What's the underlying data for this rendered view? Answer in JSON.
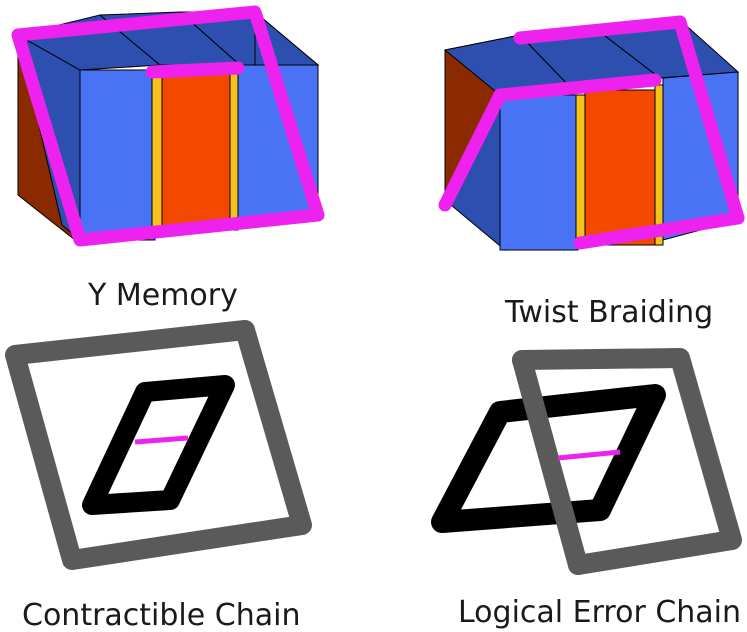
{
  "panels": {
    "y_memory": {
      "label": "Y Memory"
    },
    "twist_braiding": {
      "label": "Twist Braiding"
    },
    "contractible_chain": {
      "label": "Contractible Chain"
    },
    "logical_error_chain": {
      "label": "Logical Error Chain"
    }
  },
  "colors": {
    "block_blue": "#4a72f5",
    "block_blue_dark": "#2d4fb0",
    "block_orange": "#f24800",
    "block_brown": "#8b2a00",
    "defect_magenta": "#ee22ee",
    "seam_yellow": "#f4c21a",
    "chain_gray": "#5a5a5a",
    "chain_black": "#000000"
  }
}
